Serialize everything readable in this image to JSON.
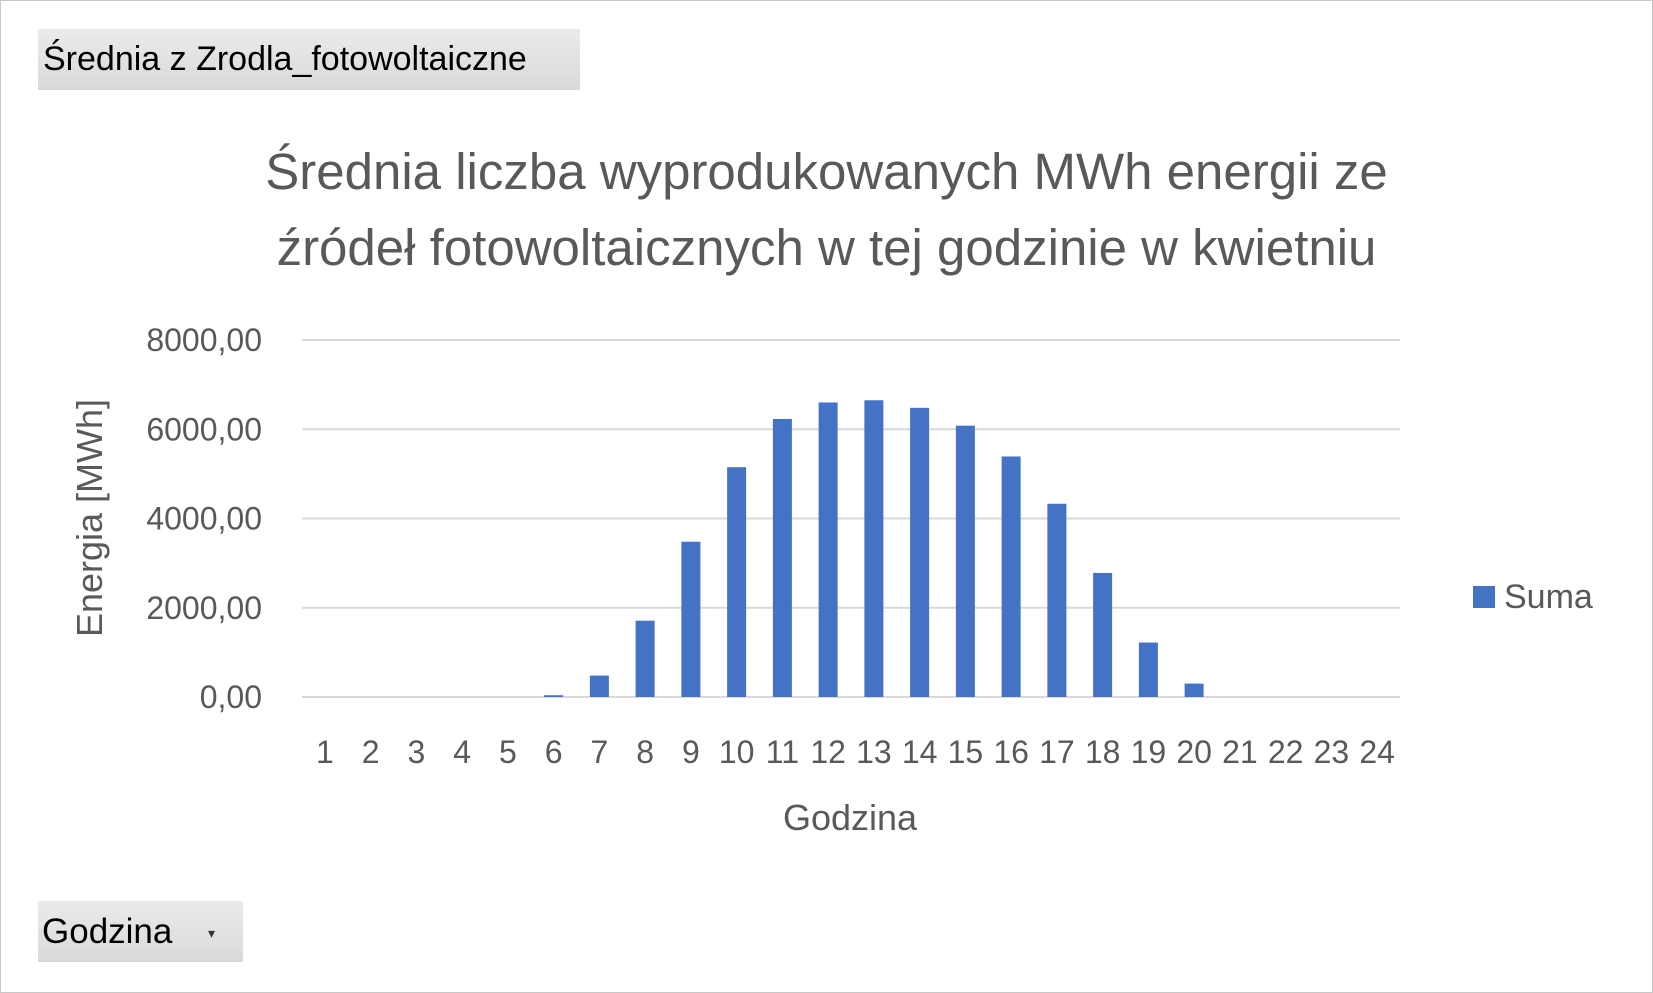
{
  "pivot": {
    "value_field": "Średnia z Zrodla_fotowoltaiczne",
    "axis_field": "Godzina",
    "dropdown_icon": "dropdown-arrow-icon"
  },
  "chart_data": {
    "type": "bar",
    "title_lines": [
      "Średnia liczba wyprodukowanych MWh energii ze",
      "źródeł fotowoltaicznych w tej godzinie w kwietniu"
    ],
    "xlabel": "Godzina",
    "ylabel": "Energia [MWh]",
    "ylim": [
      0,
      8000
    ],
    "y_ticks": [
      "0,00",
      "2000,00",
      "4000,00",
      "6000,00",
      "8000,00"
    ],
    "y_tick_values": [
      0,
      2000,
      4000,
      6000,
      8000
    ],
    "categories": [
      "1",
      "2",
      "3",
      "4",
      "5",
      "6",
      "7",
      "8",
      "9",
      "10",
      "11",
      "12",
      "13",
      "14",
      "15",
      "16",
      "17",
      "18",
      "19",
      "20",
      "21",
      "22",
      "23",
      "24"
    ],
    "series": [
      {
        "name": "Suma",
        "color": "#4472c4",
        "values": [
          0,
          0,
          0,
          0,
          0,
          40,
          480,
          1710,
          3480,
          5150,
          6230,
          6600,
          6650,
          6480,
          6080,
          5390,
          4330,
          2780,
          1220,
          300,
          0,
          0,
          0,
          0
        ]
      }
    ],
    "grid": true,
    "legend_position": "right"
  }
}
